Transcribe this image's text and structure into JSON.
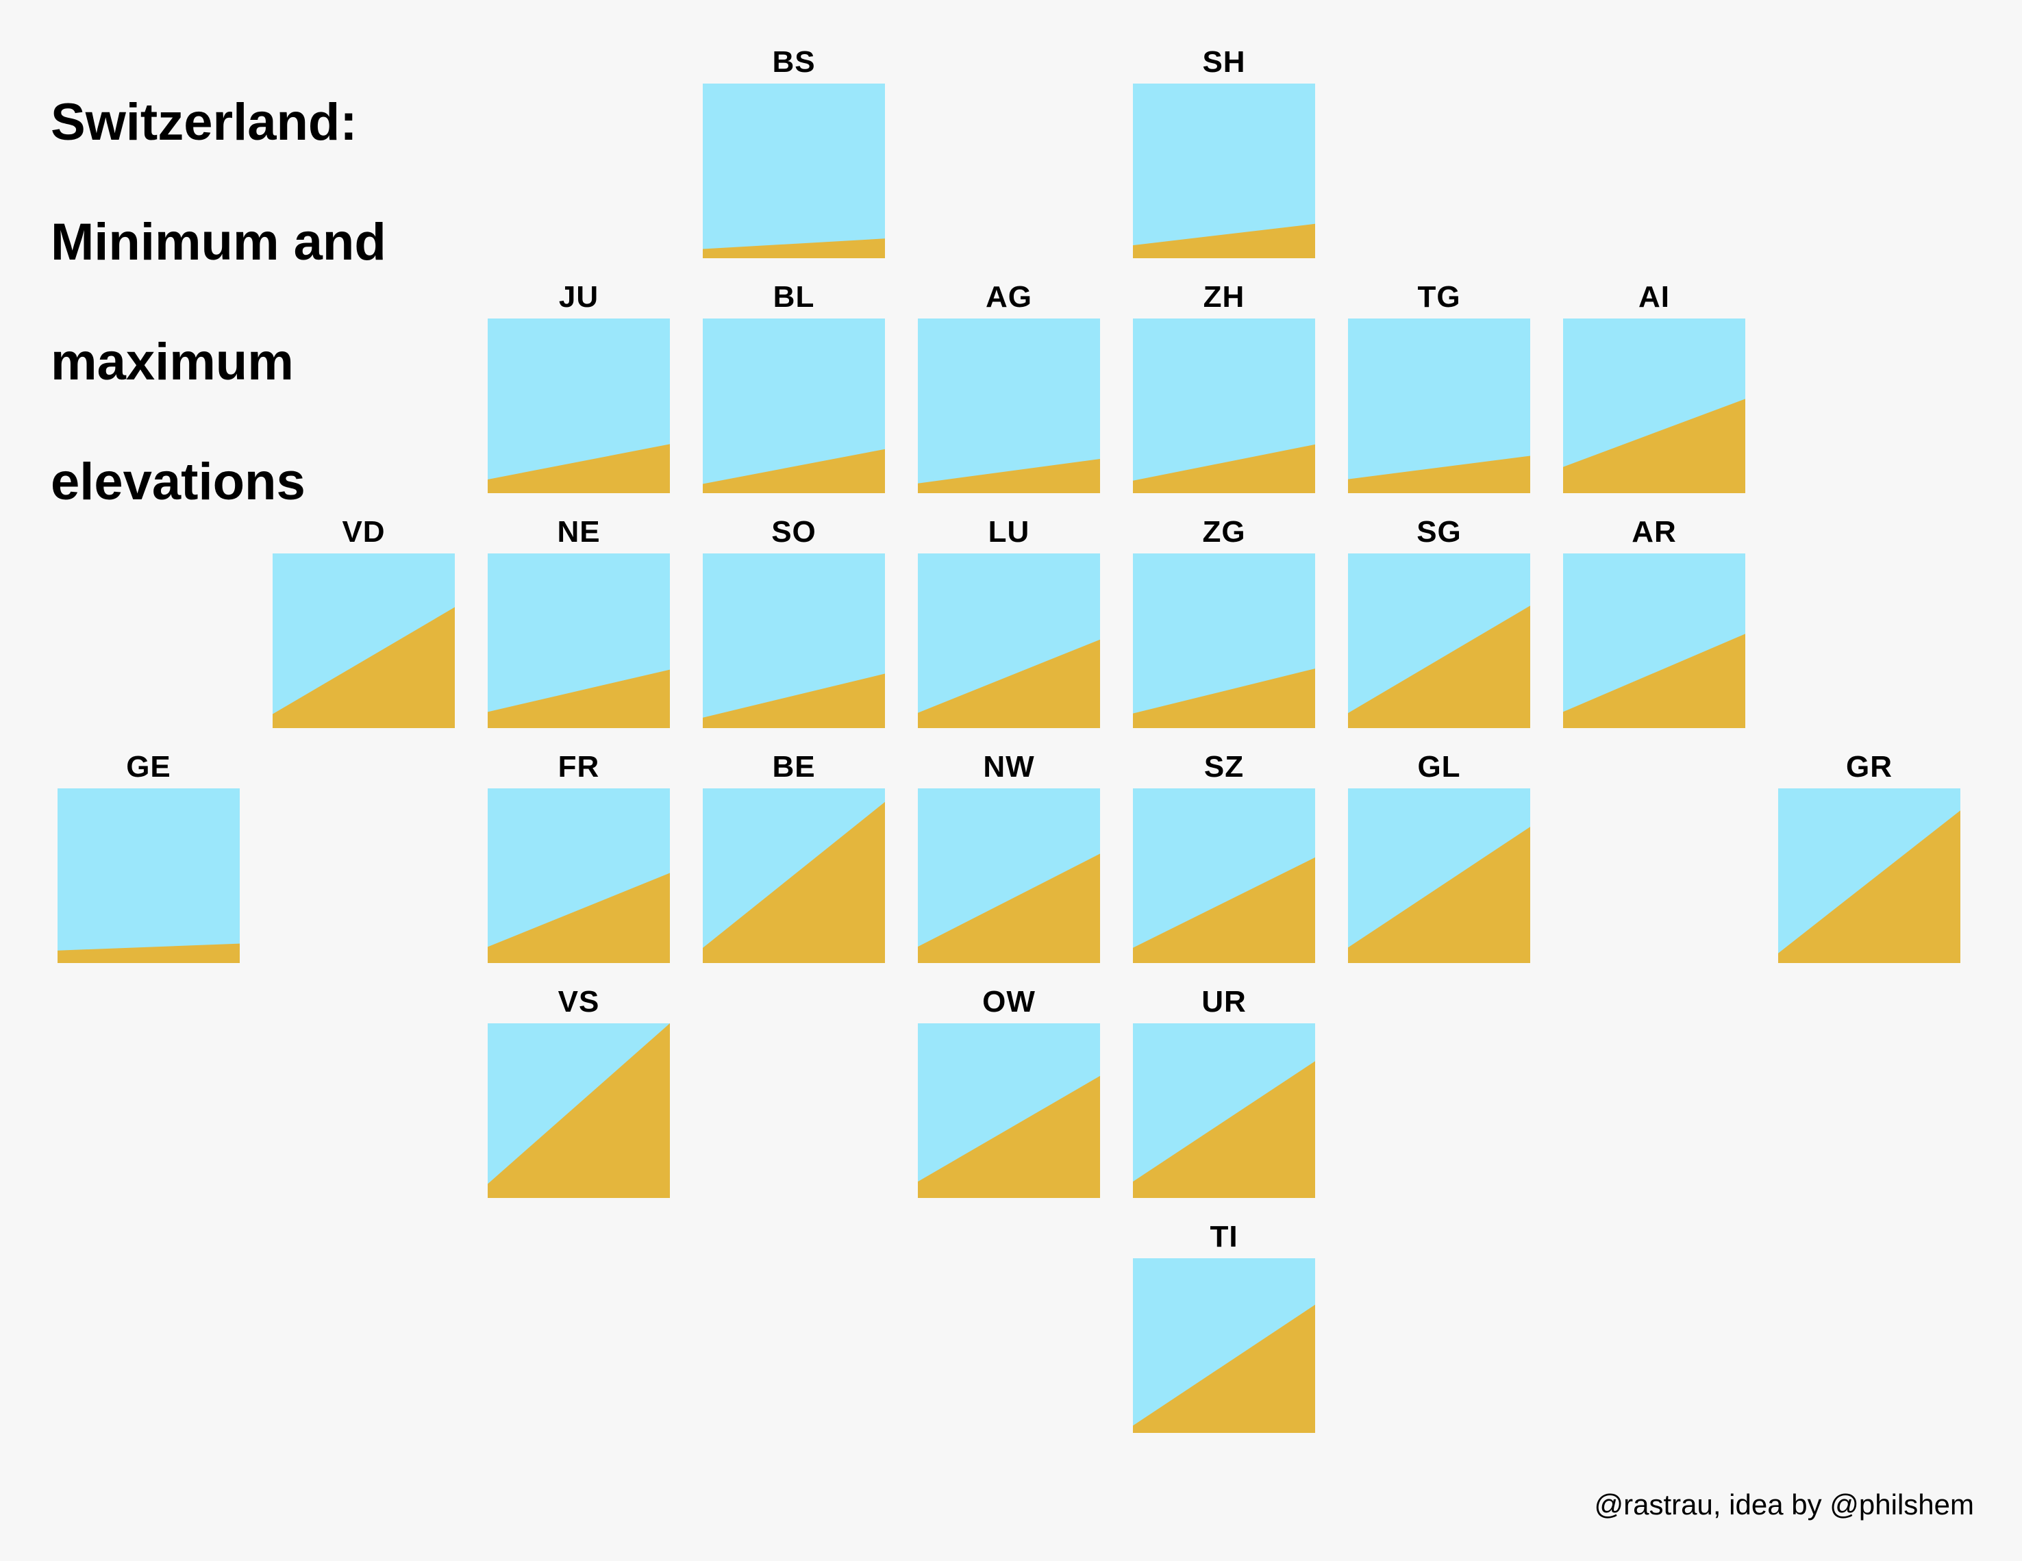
{
  "title": {
    "lines": [
      "Switzerland:",
      "Minimum and",
      "maximum",
      "elevations"
    ]
  },
  "credit": {
    "text": "@rastrau, idea by @philshem"
  },
  "colors": {
    "background": "#F7F7F7",
    "sky": "#9BE7FB",
    "mountain": "#E4B63D",
    "text": "#000000"
  },
  "chart_data": {
    "type": "area",
    "title": "Switzerland: Minimum and maximum elevations",
    "description": "Tile-grid small multiples arranged like the map of Switzerland. Each square shows a gold elevation wedge over a sky-blue background: the left edge height is the canton's minimum elevation, the right edge height its maximum elevation, on a shared scale.",
    "unit": "m",
    "ylim": [
      0,
      4634
    ],
    "grid": {
      "columns": 9,
      "rows": 6
    },
    "legend": "none",
    "cantons": [
      {
        "code": "BS",
        "row": 1,
        "col": 4,
        "min_m": 245,
        "max_m": 522
      },
      {
        "code": "SH",
        "row": 1,
        "col": 6,
        "min_m": 344,
        "max_m": 912
      },
      {
        "code": "JU",
        "row": 2,
        "col": 3,
        "min_m": 364,
        "max_m": 1302
      },
      {
        "code": "BL",
        "row": 2,
        "col": 4,
        "min_m": 246,
        "max_m": 1169
      },
      {
        "code": "AG",
        "row": 2,
        "col": 5,
        "min_m": 260,
        "max_m": 908
      },
      {
        "code": "ZH",
        "row": 2,
        "col": 6,
        "min_m": 332,
        "max_m": 1292
      },
      {
        "code": "TG",
        "row": 2,
        "col": 7,
        "min_m": 370,
        "max_m": 991
      },
      {
        "code": "AI",
        "row": 2,
        "col": 8,
        "min_m": 696,
        "max_m": 2501
      },
      {
        "code": "VD",
        "row": 3,
        "col": 2,
        "min_m": 372,
        "max_m": 3210
      },
      {
        "code": "NE",
        "row": 3,
        "col": 3,
        "min_m": 429,
        "max_m": 1552
      },
      {
        "code": "SO",
        "row": 3,
        "col": 4,
        "min_m": 277,
        "max_m": 1445
      },
      {
        "code": "LU",
        "row": 3,
        "col": 5,
        "min_m": 406,
        "max_m": 2350
      },
      {
        "code": "ZG",
        "row": 3,
        "col": 6,
        "min_m": 388,
        "max_m": 1580
      },
      {
        "code": "SG",
        "row": 3,
        "col": 7,
        "min_m": 398,
        "max_m": 3247
      },
      {
        "code": "AR",
        "row": 3,
        "col": 8,
        "min_m": 430,
        "max_m": 2501
      },
      {
        "code": "GE",
        "row": 4,
        "col": 1,
        "min_m": 332,
        "max_m": 516
      },
      {
        "code": "FR",
        "row": 4,
        "col": 3,
        "min_m": 429,
        "max_m": 2389
      },
      {
        "code": "BE",
        "row": 4,
        "col": 4,
        "min_m": 401,
        "max_m": 4274
      },
      {
        "code": "NW",
        "row": 4,
        "col": 5,
        "min_m": 434,
        "max_m": 2901
      },
      {
        "code": "SZ",
        "row": 4,
        "col": 6,
        "min_m": 406,
        "max_m": 2802
      },
      {
        "code": "GL",
        "row": 4,
        "col": 7,
        "min_m": 410,
        "max_m": 3614
      },
      {
        "code": "GR",
        "row": 4,
        "col": 9,
        "min_m": 260,
        "max_m": 4049
      },
      {
        "code": "VS",
        "row": 5,
        "col": 3,
        "min_m": 372,
        "max_m": 4634
      },
      {
        "code": "OW",
        "row": 5,
        "col": 5,
        "min_m": 434,
        "max_m": 3238
      },
      {
        "code": "UR",
        "row": 5,
        "col": 6,
        "min_m": 434,
        "max_m": 3630
      },
      {
        "code": "TI",
        "row": 6,
        "col": 6,
        "min_m": 193,
        "max_m": 3402
      }
    ]
  }
}
